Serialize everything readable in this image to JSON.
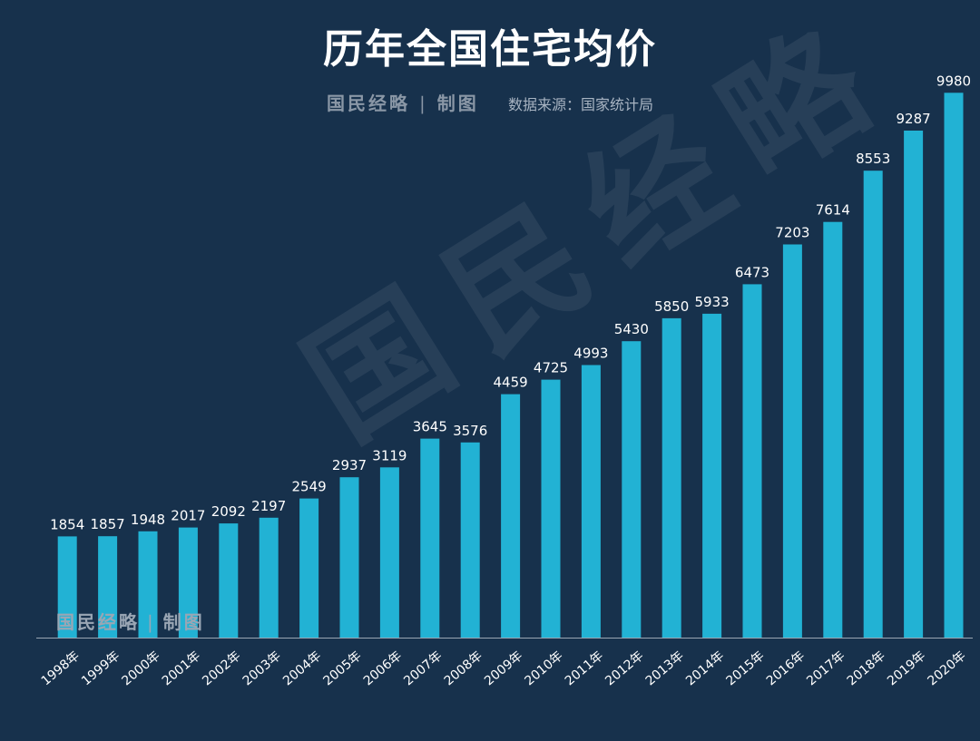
{
  "title": "历年全国住宅均价",
  "brand": {
    "name": "国民经略",
    "action": "制图",
    "separator": "|"
  },
  "source": "数据来源：国家统计局",
  "watermark": "国民经略",
  "colors": {
    "background": "#17314c",
    "bar": "#22b2d4",
    "text": "#ffffff"
  },
  "chart_data": {
    "type": "bar",
    "title": "历年全国住宅均价",
    "xlabel": "",
    "ylabel": "",
    "categories": [
      "1998年",
      "1999年",
      "2000年",
      "2001年",
      "2002年",
      "2003年",
      "2004年",
      "2005年",
      "2006年",
      "2007年",
      "2008年",
      "2009年",
      "2010年",
      "2011年",
      "2012年",
      "2013年",
      "2014年",
      "2015年",
      "2016年",
      "2017年",
      "2018年",
      "2019年",
      "2020年"
    ],
    "values": [
      1854,
      1857,
      1948,
      2017,
      2092,
      2197,
      2549,
      2937,
      3119,
      3645,
      3576,
      4459,
      4725,
      4993,
      5430,
      5850,
      5933,
      6473,
      7203,
      7614,
      8553,
      9287,
      9980
    ],
    "ylim": [
      0,
      10600
    ],
    "grid": false,
    "data_labels": true
  }
}
